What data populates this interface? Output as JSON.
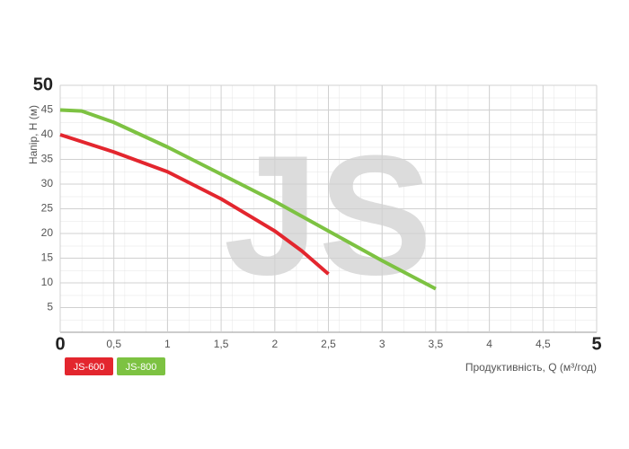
{
  "chart_data": {
    "type": "line",
    "watermark": "JS",
    "ylabel": "Напір, H (м)",
    "xlabel": "Продуктивність, Q (м³/год)",
    "xlim": [
      0,
      5
    ],
    "ylim": [
      0,
      50
    ],
    "xticks": [
      0,
      {
        "value": 0.5,
        "label": "0,5"
      },
      1,
      {
        "value": 1.5,
        "label": "1,5"
      },
      2,
      {
        "value": 2.5,
        "label": "2,5"
      },
      3,
      {
        "value": 3.5,
        "label": "3,5"
      },
      4,
      {
        "value": 4.5,
        "label": "4,5"
      },
      5
    ],
    "yticks": [
      5,
      10,
      15,
      20,
      25,
      30,
      35,
      40,
      45,
      50
    ],
    "grid": true,
    "legend": "bottom-left",
    "series": [
      {
        "name": "JS-600",
        "color": "#e3262e",
        "x": [
          0,
          0.5,
          1,
          1.5,
          2,
          2.25,
          2.5
        ],
        "values": [
          40,
          36.5,
          32.5,
          27,
          20.5,
          16.5,
          11.8
        ]
      },
      {
        "name": "JS-800",
        "color": "#7dc242",
        "x": [
          0,
          0.2,
          0.5,
          1,
          1.5,
          2,
          2.5,
          3,
          3.5
        ],
        "values": [
          45,
          44.8,
          42.5,
          37.5,
          32,
          26.5,
          20.5,
          14.5,
          8.8
        ]
      }
    ]
  }
}
